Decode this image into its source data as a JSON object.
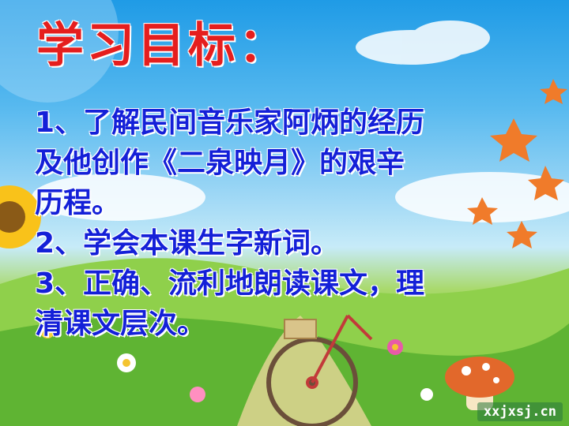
{
  "slide": {
    "title": "学习目标：",
    "lines": [
      "1、了解民间音乐家阿炳的经历",
      "及他创作《二泉映月》的艰辛",
      "历程。",
      "2、学会本课生字新词。",
      "3、正确、流利地朗读课文，理",
      "清课文层次。"
    ],
    "watermark": "xxjxsj.cn"
  },
  "colors": {
    "title": "#e51e1e",
    "body_text": "#1420d8",
    "sky": "#57b9ef",
    "grass": "#6fbf3a"
  }
}
